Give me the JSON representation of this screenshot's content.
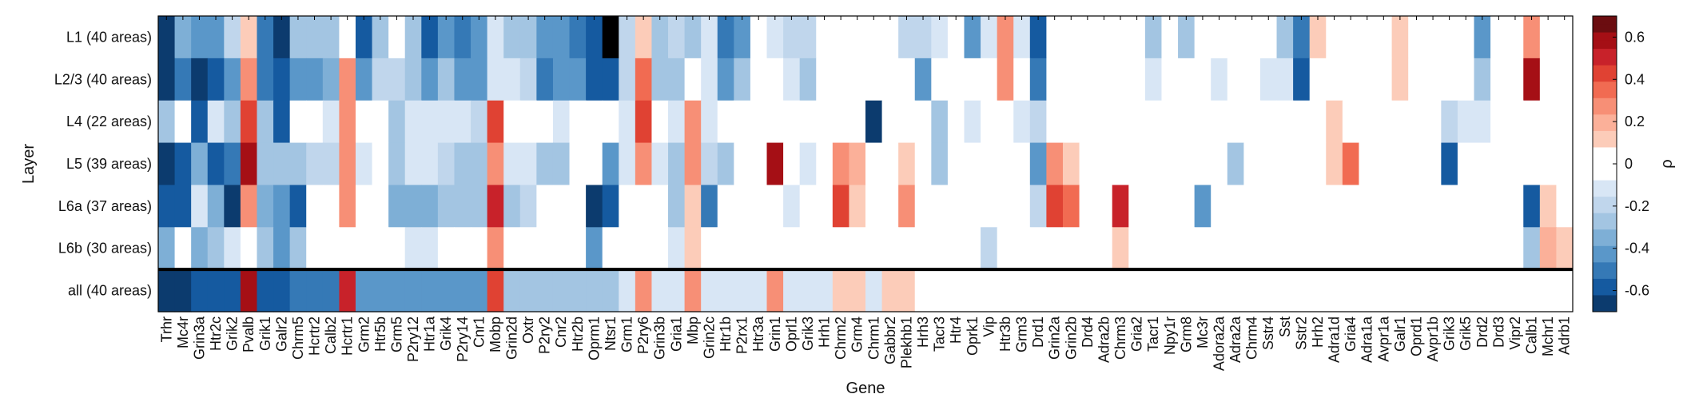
{
  "chart_data": {
    "type": "heatmap",
    "xlabel": "Gene",
    "ylabel": "Layer",
    "colorbar_label": "ρ",
    "colorbar_ticks": [
      "-0.6",
      "-0.4",
      "-0.2",
      "0",
      "0.2",
      "0.4",
      "0.6"
    ],
    "colorbar_range": [
      -0.7,
      0.7
    ],
    "genes": [
      "Trhr",
      "Mc4r",
      "Grin3a",
      "Htr2c",
      "Grik2",
      "Pvalb",
      "Grik1",
      "Galr2",
      "Chrm5",
      "Hcrtr2",
      "Calb2",
      "Hcrtr1",
      "Grm2",
      "Htr5b",
      "Grm5",
      "P2ry12",
      "Htr1a",
      "Grik4",
      "P2ry14",
      "Cnr1",
      "Mobp",
      "Grin2d",
      "Oxtr",
      "P2ry2",
      "Cnr2",
      "Htr2b",
      "Oprm1",
      "Ntsr1",
      "Grm1",
      "P2ry6",
      "Grin3b",
      "Gria1",
      "Mbp",
      "Grin2c",
      "Htr1b",
      "P2rx1",
      "Htr3a",
      "Grin1",
      "Oprl1",
      "Grik3",
      "Hrh1",
      "Chrm2",
      "Grm4",
      "Chrm1",
      "Gabbr2",
      "Plekhb1",
      "Hrh3",
      "Tacr3",
      "Htr4",
      "Oprk1",
      "Vip",
      "Htr3b",
      "Grm3",
      "Drd1",
      "Grin2a",
      "Grin2b",
      "Drd4",
      "Adra2b",
      "Chrm3",
      "Gria2",
      "Tacr1",
      "Npy1r",
      "Grm8",
      "Mc3r",
      "Adora2a",
      "Adra2a",
      "Chrm4",
      "Sstr4",
      "Sst",
      "Sstr2",
      "Hrh2",
      "Adra1d",
      "Gria4",
      "Adra1a",
      "Avpr1a",
      "Galr1",
      "Oprd1",
      "Avpr1b",
      "Grik3",
      "Grik5",
      "Drd2",
      "Drd3",
      "Vipr2",
      "Calb1",
      "Mchr1",
      "Adrb1"
    ],
    "layers": [
      "L1 (40 areas)",
      "L2/3 (40 areas)",
      "L4 (22 areas)",
      "L5 (39 areas)",
      "L6a (37 areas)",
      "L6b (30 areas)",
      "all (40 areas)"
    ],
    "values": [
      [
        -0.65,
        -0.35,
        -0.45,
        -0.45,
        -0.2,
        0.15,
        -0.5,
        -0.65,
        -0.3,
        -0.3,
        -0.3,
        0.05,
        -0.55,
        -0.25,
        -0.05,
        -0.25,
        -0.6,
        -0.4,
        -0.5,
        -0.45,
        -0.1,
        -0.3,
        -0.3,
        -0.4,
        -0.45,
        -0.5,
        -0.55,
        -0.9,
        -0.2,
        0.15,
        -0.25,
        -0.2,
        -0.25,
        -0.15,
        -0.5,
        -0.4,
        -0.05,
        -0.1,
        -0.2,
        -0.2,
        0.0,
        -0.05,
        0.0,
        0.0,
        0.05,
        -0.2,
        -0.2,
        -0.1,
        0.05,
        -0.45,
        -0.1,
        0.3,
        -0.1,
        -0.55,
        0.0,
        0.0,
        -0.05,
        -0.05,
        0.0,
        0.0,
        -0.3,
        0.0,
        -0.25,
        0.0,
        0.0,
        0.0,
        0.0,
        0.0,
        -0.3,
        -0.5,
        0.15,
        0.0,
        0.0,
        0.0,
        0.0,
        0.1,
        0.05,
        0.0,
        0.0,
        0.0,
        -0.45,
        0.0,
        0.0,
        0.3,
        -0.05,
        0.0
      ],
      [
        -0.65,
        -0.5,
        -0.65,
        -0.55,
        -0.45,
        0.25,
        -0.5,
        -0.55,
        -0.45,
        -0.4,
        -0.35,
        0.25,
        -0.45,
        -0.2,
        -0.2,
        -0.3,
        -0.45,
        -0.3,
        -0.4,
        -0.45,
        -0.1,
        -0.1,
        -0.2,
        -0.5,
        -0.45,
        -0.4,
        -0.6,
        -0.55,
        -0.2,
        0.35,
        -0.3,
        -0.25,
        0.0,
        -0.15,
        -0.45,
        -0.3,
        -0.05,
        0.0,
        -0.1,
        -0.3,
        0.0,
        0.0,
        0.0,
        0.0,
        0.0,
        0.0,
        -0.45,
        0.0,
        0.0,
        0.0,
        0.05,
        0.25,
        0.0,
        -0.5,
        0.0,
        0.05,
        0.0,
        0.0,
        0.0,
        0.0,
        -0.1,
        0.0,
        0.0,
        0.0,
        -0.1,
        0.0,
        0.0,
        -0.1,
        -0.15,
        -0.55,
        0.0,
        0.0,
        0.0,
        0.0,
        0.0,
        0.15,
        0.0,
        0.0,
        0.0,
        0.0,
        -0.3,
        0.0,
        0.0,
        0.55,
        0.0,
        0.0
      ],
      [
        -0.3,
        0.0,
        -0.6,
        -0.1,
        -0.3,
        0.4,
        -0.3,
        -0.6,
        0.0,
        -0.05,
        -0.1,
        0.3,
        0.0,
        -0.05,
        -0.3,
        -0.1,
        -0.15,
        -0.15,
        -0.1,
        -0.2,
        0.4,
        0.0,
        0.0,
        -0.05,
        -0.1,
        -0.05,
        -0.05,
        0.0,
        -0.15,
        0.4,
        0.0,
        -0.1,
        0.3,
        -0.1,
        0.0,
        0.05,
        0.0,
        0.0,
        -0.05,
        0.0,
        0.0,
        0.0,
        0.0,
        -0.65,
        0.0,
        0.0,
        0.0,
        -0.3,
        0.0,
        -0.1,
        -0.05,
        0.0,
        -0.15,
        -0.2,
        0.05,
        0.0,
        0.0,
        0.0,
        0.0,
        0.0,
        0.0,
        0.0,
        0.0,
        0.0,
        0.0,
        0.05,
        0.0,
        0.0,
        0.0,
        0.0,
        0.0,
        0.1,
        0.05,
        0.0,
        0.0,
        0.0,
        0.0,
        0.0,
        -0.2,
        -0.15,
        -0.15,
        0.0,
        0.0,
        0.0,
        0.0,
        0.0
      ],
      [
        -0.7,
        -0.55,
        -0.35,
        -0.55,
        -0.5,
        0.55,
        -0.3,
        -0.3,
        -0.25,
        -0.2,
        -0.2,
        0.3,
        -0.1,
        0.0,
        -0.3,
        -0.15,
        -0.1,
        -0.2,
        -0.25,
        -0.25,
        0.3,
        -0.1,
        -0.1,
        -0.3,
        -0.3,
        0.0,
        -0.05,
        -0.45,
        -0.1,
        0.25,
        -0.15,
        -0.3,
        0.25,
        -0.2,
        -0.3,
        0.0,
        0.0,
        0.55,
        -0.05,
        -0.15,
        0.0,
        0.3,
        0.2,
        0.0,
        0.0,
        0.15,
        0.0,
        -0.3,
        0.0,
        0.0,
        0.0,
        0.0,
        -0.05,
        -0.4,
        0.25,
        0.15,
        0.0,
        0.0,
        0.0,
        0.0,
        0.0,
        0.0,
        0.0,
        0.0,
        0.0,
        -0.3,
        0.0,
        0.05,
        0.05,
        0.0,
        0.0,
        0.15,
        0.35,
        0.0,
        0.0,
        0.0,
        0.0,
        0.0,
        -0.55,
        0.0,
        0.0,
        0.0,
        0.0,
        0.0,
        0.0,
        0.0
      ],
      [
        -0.55,
        -0.55,
        -0.1,
        -0.35,
        -0.7,
        0.25,
        -0.35,
        -0.45,
        -0.55,
        -0.05,
        -0.05,
        0.3,
        -0.05,
        0.0,
        -0.35,
        -0.35,
        -0.35,
        -0.3,
        -0.3,
        -0.3,
        0.5,
        -0.3,
        -0.2,
        -0.05,
        0.0,
        0.0,
        -0.65,
        -0.55,
        0.0,
        0.05,
        0.0,
        -0.25,
        0.15,
        -0.5,
        0.0,
        0.0,
        0.0,
        0.05,
        -0.15,
        -0.05,
        0.0,
        0.4,
        0.15,
        0.0,
        0.05,
        0.25,
        0.0,
        -0.05,
        0.05,
        0.0,
        0.0,
        0.0,
        -0.05,
        -0.2,
        0.4,
        0.35,
        0.0,
        0.0,
        0.5,
        0.0,
        0.0,
        0.0,
        0.0,
        -0.45,
        0.0,
        -0.05,
        0.0,
        0.0,
        0.0,
        0.0,
        0.0,
        0.0,
        0.0,
        0.0,
        0.0,
        0.0,
        0.0,
        0.05,
        0.0,
        0.0,
        0.0,
        0.0,
        0.0,
        -0.6,
        0.15,
        0.0
      ],
      [
        -0.35,
        0.0,
        -0.35,
        -0.3,
        -0.15,
        0.0,
        -0.3,
        -0.45,
        -0.3,
        0.0,
        0.0,
        0.0,
        0.0,
        0.0,
        -0.05,
        -0.1,
        -0.1,
        -0.05,
        -0.05,
        -0.05,
        0.3,
        0.0,
        -0.05,
        0.0,
        0.0,
        0.0,
        -0.45,
        0.0,
        0.0,
        0.0,
        0.0,
        -0.1,
        0.1,
        0.0,
        0.0,
        0.0,
        -0.05,
        0.0,
        -0.05,
        0.0,
        0.0,
        0.0,
        0.0,
        0.0,
        0.0,
        0.0,
        0.0,
        0.0,
        -0.05,
        0.0,
        -0.2,
        0.0,
        0.0,
        -0.05,
        0.0,
        0.0,
        0.0,
        0.0,
        0.1,
        0.0,
        0.0,
        -0.05,
        0.0,
        0.0,
        0.0,
        0.0,
        0.0,
        -0.05,
        0.0,
        0.0,
        0.0,
        0.0,
        0.0,
        0.0,
        0.0,
        0.0,
        0.0,
        0.0,
        0.0,
        0.0,
        0.0,
        0.0,
        0.0,
        -0.25,
        0.2,
        0.1
      ],
      [
        -0.7,
        -0.7,
        -0.6,
        -0.6,
        -0.6,
        0.6,
        -0.55,
        -0.55,
        -0.5,
        -0.5,
        -0.5,
        0.5,
        -0.4,
        -0.4,
        -0.4,
        -0.4,
        -0.4,
        -0.4,
        -0.4,
        -0.4,
        0.45,
        -0.3,
        -0.3,
        -0.3,
        -0.3,
        -0.3,
        -0.3,
        -0.3,
        -0.15,
        0.25,
        -0.15,
        -0.15,
        0.25,
        -0.15,
        -0.15,
        -0.15,
        -0.15,
        0.25,
        -0.1,
        -0.1,
        -0.1,
        0.1,
        0.1,
        -0.1,
        0.1,
        0.1,
        -0.05,
        -0.05,
        0.05,
        -0.05,
        -0.05,
        0.05,
        0.05,
        -0.05,
        0.0,
        0.0,
        0.0,
        0.0,
        0.0,
        0.0,
        0.0,
        0.0,
        0.0,
        0.0,
        0.0,
        0.0,
        0.0,
        0.0,
        0.0,
        0.0,
        0.0,
        0.0,
        0.0,
        0.0,
        0.0,
        0.0,
        0.0,
        0.0,
        0.0,
        0.0,
        0.0,
        0.0,
        0.0,
        0.0,
        0.0,
        0.0
      ]
    ]
  }
}
